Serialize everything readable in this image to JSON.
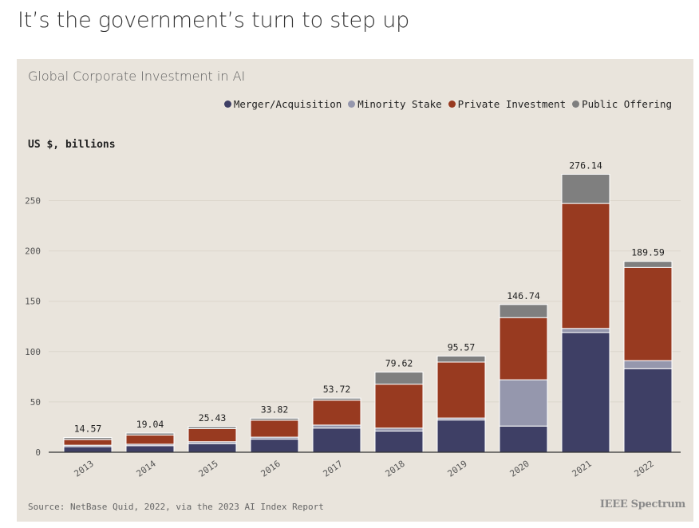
{
  "headline": "It’s the government’s turn to step up",
  "chart_data": {
    "type": "bar",
    "stacked": true,
    "title": "Global Corporate Investment in AI",
    "ylabel": "US $, billions",
    "ylim": [
      0,
      280
    ],
    "yticks": [
      0,
      50,
      100,
      150,
      200,
      250
    ],
    "grid": true,
    "legend_position": "top-right",
    "categories": [
      "2013",
      "2014",
      "2015",
      "2016",
      "2017",
      "2018",
      "2019",
      "2020",
      "2021",
      "2022"
    ],
    "series": [
      {
        "name": "Merger/Acquisition",
        "color": "#3e3f65",
        "values": [
          5.5,
          6.5,
          8.5,
          13,
          24,
          21,
          32,
          26,
          119,
          83
        ]
      },
      {
        "name": "Minority Stake",
        "color": "#9597ad",
        "values": [
          1.5,
          1.5,
          2,
          2,
          3,
          3,
          2,
          46,
          4,
          8
        ]
      },
      {
        "name": "Private Investment",
        "color": "#983a20",
        "values": [
          5.57,
          9.04,
          12.93,
          16.82,
          24.72,
          43.62,
          55.57,
          61.74,
          124.14,
          92.59
        ]
      },
      {
        "name": "Public Offering",
        "color": "#7f7f7f",
        "values": [
          2,
          2,
          2,
          2,
          2,
          12,
          6,
          13,
          29,
          6
        ]
      }
    ],
    "totals": [
      14.57,
      19.04,
      25.43,
      33.82,
      53.72,
      79.62,
      95.57,
      146.74,
      276.14,
      189.59
    ]
  },
  "source": "Source: NetBase Quid, 2022, via the 2023 AI Index Report",
  "brand": "IEEE Spectrum"
}
